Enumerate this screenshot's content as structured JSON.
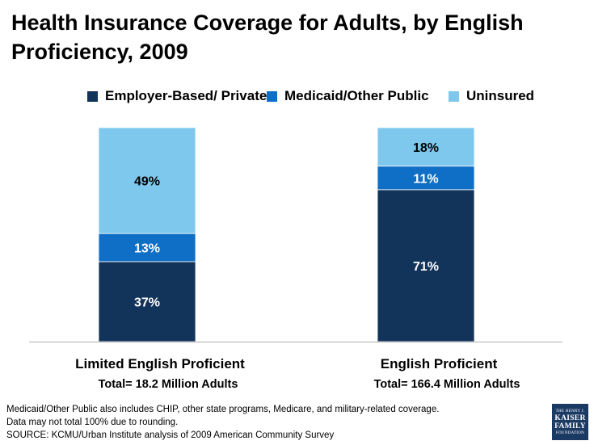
{
  "title": "Health Insurance Coverage for Adults, by English Proficiency, 2009",
  "legend": [
    {
      "label": "Employer-Based/ Private",
      "color": "#13345a"
    },
    {
      "label": "Medicaid/Other Public",
      "color": "#0f6fc6"
    },
    {
      "label": "Uninsured",
      "color": "#7ec8ee"
    }
  ],
  "chart_data": {
    "type": "bar",
    "stacked": true,
    "title": "Health Insurance Coverage for Adults, by English Proficiency, 2009",
    "categories": [
      "Limited English Proficient",
      "English Proficient"
    ],
    "category_subtitles": [
      "Total= 18.2 Million Adults",
      "Total= 166.4 Million Adults"
    ],
    "series": [
      {
        "name": "Employer-Based/ Private",
        "values": [
          37,
          71
        ],
        "labels": [
          "37%",
          "71%"
        ],
        "color": "#13345a"
      },
      {
        "name": "Medicaid/Other Public",
        "values": [
          13,
          11
        ],
        "labels": [
          "13%",
          "11%"
        ],
        "color": "#0f6fc6"
      },
      {
        "name": "Uninsured",
        "values": [
          49,
          18
        ],
        "labels": [
          "49%",
          "18%"
        ],
        "color": "#7ec8ee"
      }
    ],
    "ylim": [
      0,
      100
    ],
    "xlabel": "",
    "ylabel": "",
    "grid": false,
    "legend_position": "top"
  },
  "footnotes": {
    "line1": "Medicaid/Other Public also includes CHIP, other state programs, Medicare, and military-related coverage.",
    "line2": "Data may not total 100% due to rounding.",
    "source": "SOURCE: KCMU/Urban Institute analysis of 2009 American Community Survey"
  },
  "logo": {
    "line1": "THE HENRY J.",
    "line2": "KAISER",
    "line3": "FAMILY",
    "line4": "FOUNDATION"
  }
}
